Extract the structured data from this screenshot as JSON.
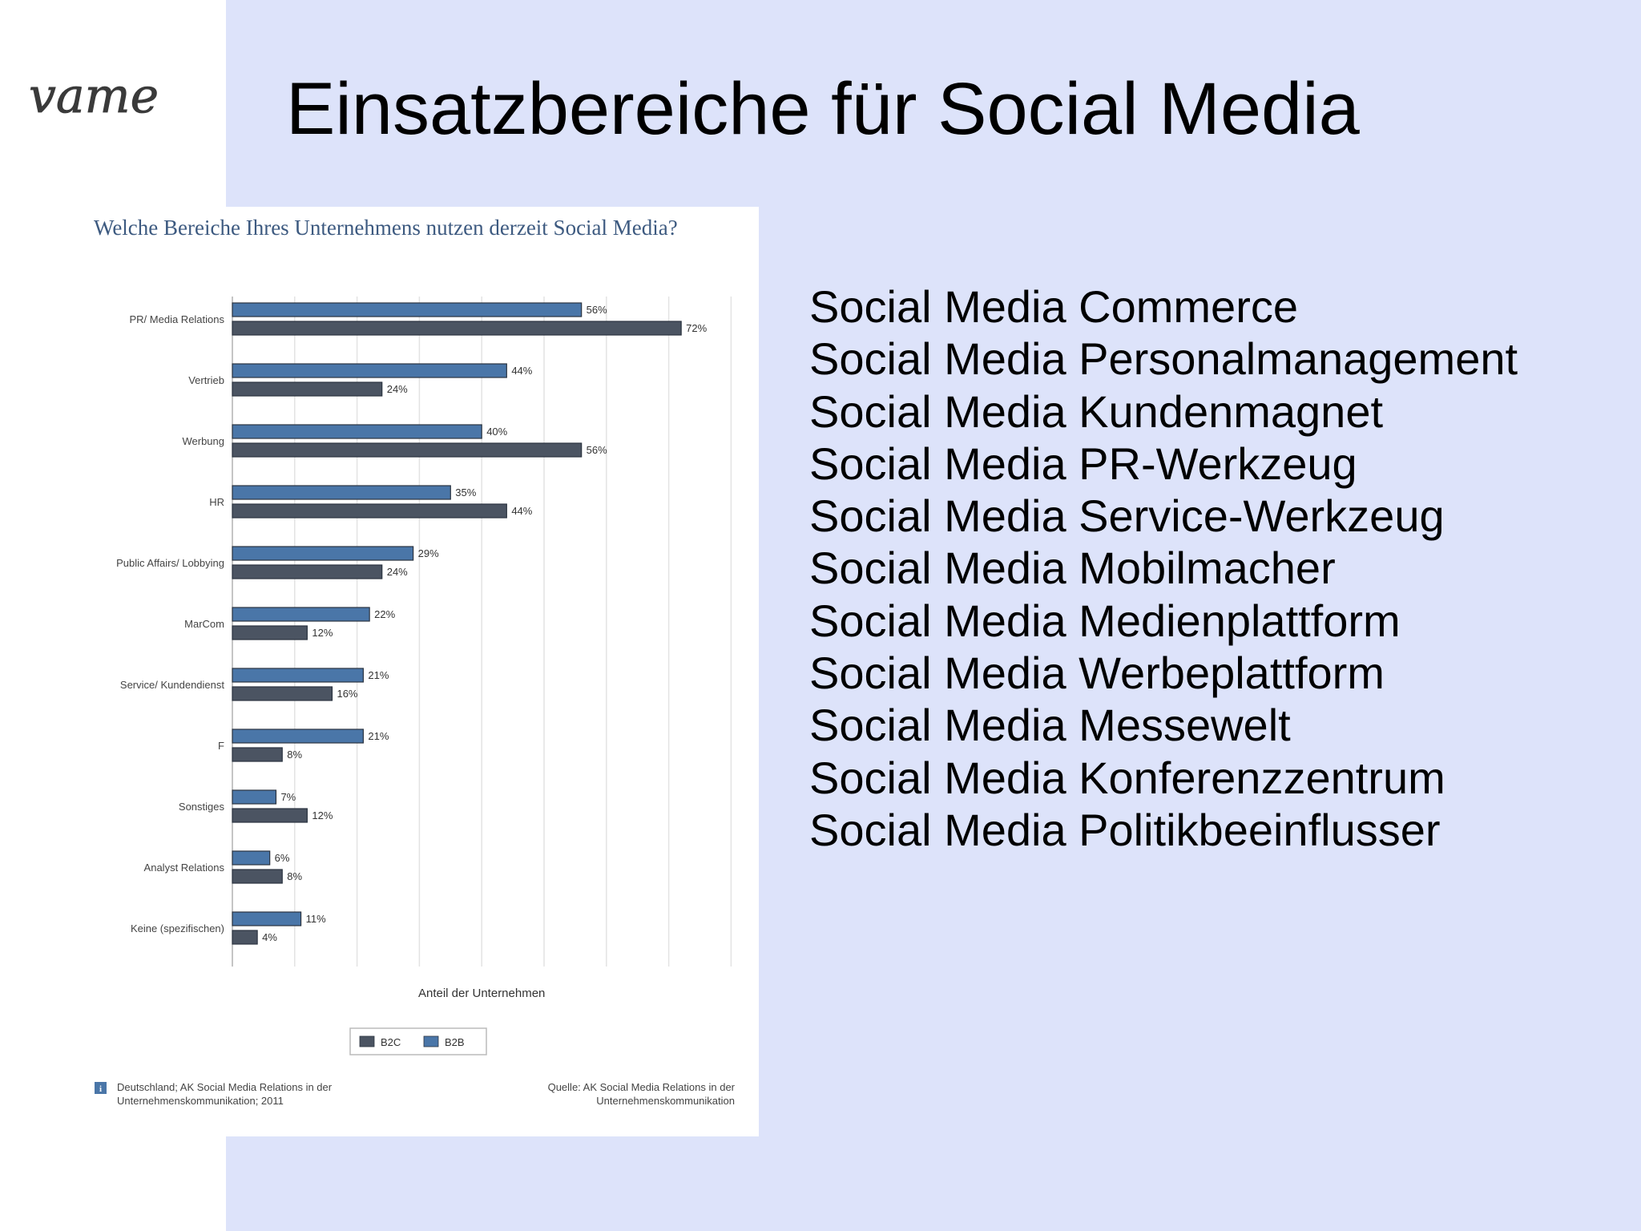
{
  "slide": {
    "logo_text": "vame",
    "title": "Einsatzbereiche für Social Media",
    "colors": {
      "background": "#dde3fa",
      "b2b": "#4a76a8",
      "b2c": "#4b5462"
    }
  },
  "notes": [
    "Social Media Commerce",
    "Social Media Personalmanagement",
    "Social Media Kundenmagnet",
    "Social Media PR-Werkzeug",
    "Social Media Service-Werkzeug",
    "Social Media Mobilmacher",
    "Social Media Medienplattform",
    "Social Media Werbeplattform",
    "Social Media Messewelt",
    "Social Media Konferenzzentrum",
    "Social Media Politikbeeinflusser"
  ],
  "chart_data": {
    "type": "bar",
    "orientation": "horizontal",
    "title": "Welche Bereiche Ihres Unternehmens nutzen derzeit Social Media?",
    "xlabel": "Anteil der Unternehmen",
    "categories": [
      "PR/ Media Relations",
      "Vertrieb",
      "Werbung",
      "HR",
      "Public Affairs/ Lobbying",
      "MarCom",
      "Service/ Kundendienst",
      "F",
      "Sonstiges",
      "Analyst Relations",
      "Keine (spezifischen)"
    ],
    "series": [
      {
        "name": "B2B",
        "color": "#4a76a8",
        "values": [
          56,
          44,
          40,
          35,
          29,
          22,
          21,
          21,
          7,
          6,
          11
        ]
      },
      {
        "name": "B2C",
        "color": "#4b5462",
        "values": [
          72,
          24,
          56,
          44,
          24,
          12,
          16,
          8,
          12,
          8,
          4
        ]
      }
    ],
    "value_suffix": "%",
    "xlim": [
      0,
      80
    ],
    "grid": true,
    "legend": {
      "position": "bottom",
      "order": [
        "B2C",
        "B2B"
      ],
      "info_icon": "info-icon"
    },
    "source_left": [
      "Deutschland; AK Social Media Relations in der",
      "Unternehmenskommunikation; 2011"
    ],
    "source_right": [
      "Quelle: AK Social Media Relations in der",
      "Unternehmenskommunikation"
    ]
  }
}
